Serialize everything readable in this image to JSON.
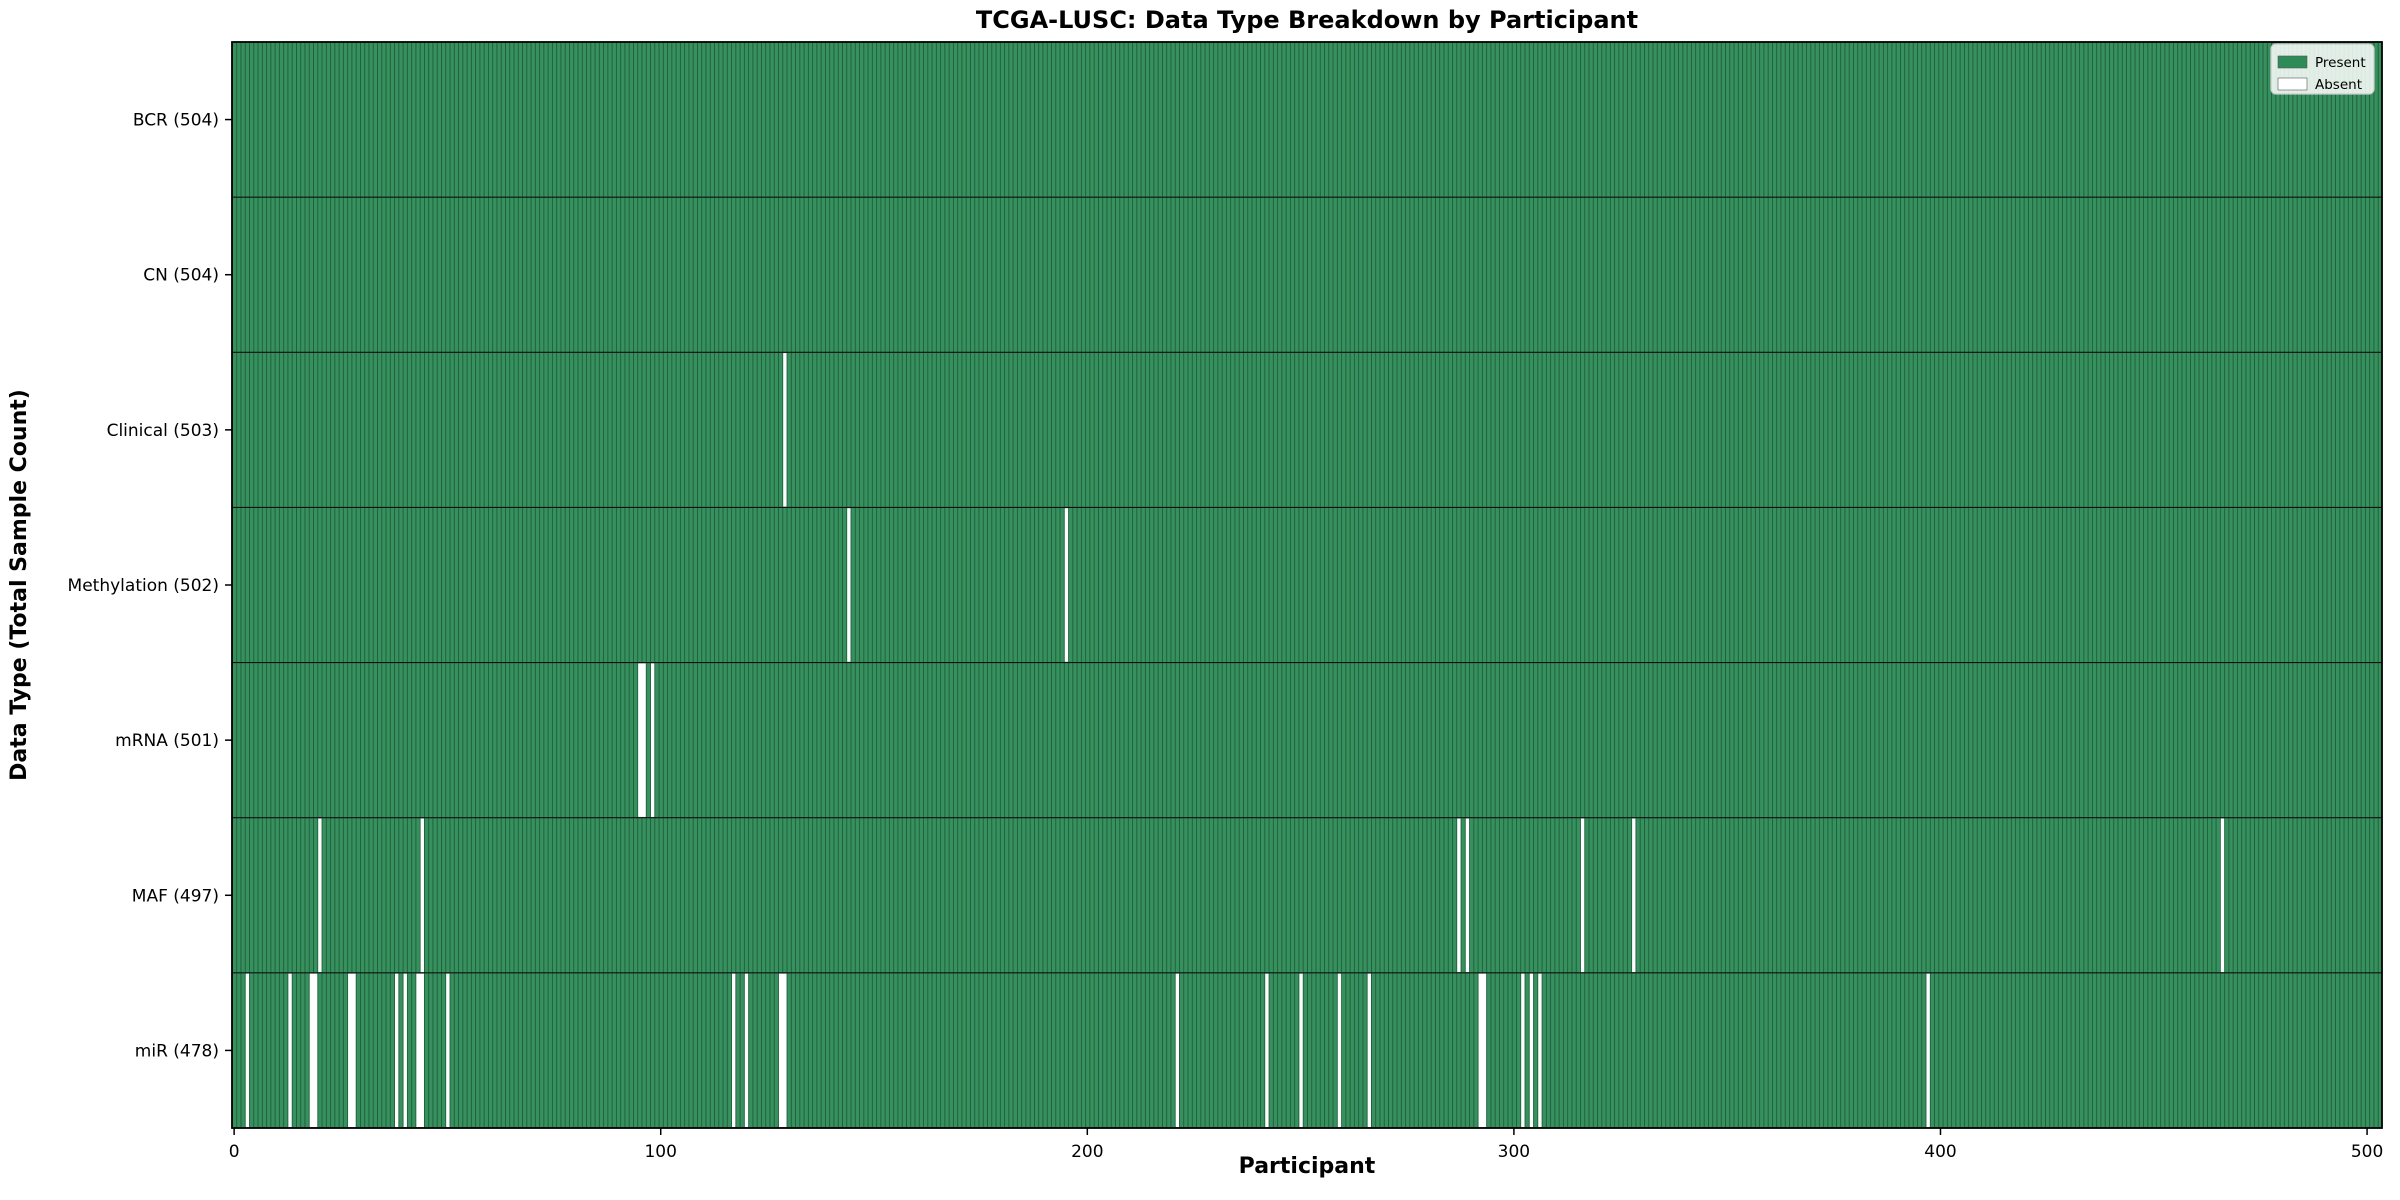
{
  "chart_data": {
    "type": "heatmap",
    "title": "TCGA-LUSC: Data Type Breakdown by Participant",
    "xlabel": "Participant",
    "ylabel": "Data Type (Total Sample Count)",
    "x_ticks": [
      "0",
      "100",
      "200",
      "300",
      "400",
      "500"
    ],
    "x_tick_values": [
      0,
      100,
      200,
      300,
      400,
      500
    ],
    "x_range": [
      0,
      504
    ],
    "n_participants": 504,
    "grid": false,
    "legend": {
      "position": "upper right",
      "entries": [
        {
          "label": "Present",
          "color": "#2e8b57"
        },
        {
          "label": "Absent",
          "color": "#ffffff"
        }
      ]
    },
    "rows": [
      {
        "label": "BCR (504)",
        "data_type": "BCR",
        "total": 504,
        "absent_participants": []
      },
      {
        "label": "CN (504)",
        "data_type": "CN",
        "total": 504,
        "absent_participants": []
      },
      {
        "label": "Clinical (503)",
        "data_type": "Clinical",
        "total": 503,
        "absent_participants": [
          129
        ]
      },
      {
        "label": "Methylation (502)",
        "data_type": "Methylation",
        "total": 502,
        "absent_participants": [
          144,
          195
        ]
      },
      {
        "label": "mRNA (501)",
        "data_type": "mRNA",
        "total": 501,
        "absent_participants": [
          95,
          96,
          98
        ]
      },
      {
        "label": "MAF (497)",
        "data_type": "MAF",
        "total": 497,
        "absent_participants": [
          20,
          44,
          287,
          289,
          316,
          328,
          466
        ]
      },
      {
        "label": "miR (478)",
        "data_type": "miR",
        "total": 478,
        "absent_participants": [
          3,
          13,
          18,
          19,
          27,
          28,
          38,
          40,
          43,
          44,
          50,
          117,
          120,
          128,
          129,
          221,
          242,
          250,
          259,
          266,
          292,
          293,
          302,
          304,
          306,
          397
        ]
      }
    ],
    "colors": {
      "present_fill": "#37915f",
      "bar_edge": "#1e5c39",
      "absent": "#ffffff",
      "separator": "#111111",
      "frame": "#000000",
      "legend_present": "#2e8b57",
      "legend_border": "#cccccc",
      "background": "#ffffff"
    }
  }
}
